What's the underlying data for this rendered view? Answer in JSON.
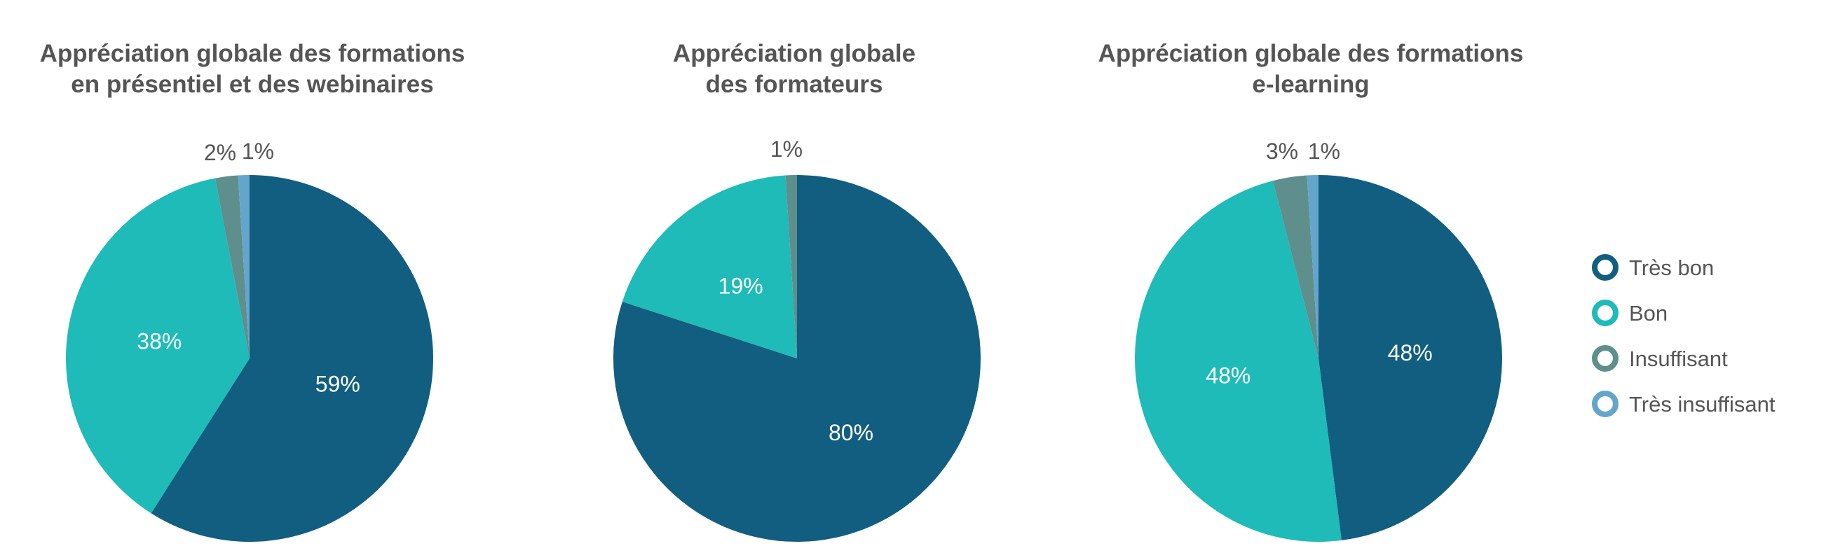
{
  "chart_data": [
    {
      "type": "pie",
      "title": [
        "Appréciation globale des formations",
        "en présentiel et des webinaires"
      ],
      "categories": [
        "Très bon",
        "Bon",
        "Insuffisant",
        "Très insuffisant"
      ],
      "values": [
        59,
        38,
        2,
        1
      ],
      "labels": [
        "59%",
        "38%",
        "2%",
        "1%"
      ]
    },
    {
      "type": "pie",
      "title": [
        "Appréciation globale",
        "des formateurs"
      ],
      "categories": [
        "Très bon",
        "Bon",
        "Insuffisant",
        "Très insuffisant"
      ],
      "values": [
        80,
        19,
        1,
        0
      ],
      "labels": [
        "80%",
        "19%",
        "1%",
        ""
      ]
    },
    {
      "type": "pie",
      "title": [
        "Appréciation globale des formations",
        "e-learning"
      ],
      "categories": [
        "Très bon",
        "Bon",
        "Insuffisant",
        "Très insuffisant"
      ],
      "values": [
        48,
        48,
        3,
        1
      ],
      "labels": [
        "48%",
        "48%",
        "3%",
        "1%"
      ]
    }
  ],
  "legend": {
    "placement": "right",
    "items": [
      {
        "label": "Très bon",
        "color": "#125E80"
      },
      {
        "label": "Bon",
        "color": "#1EBBB8"
      },
      {
        "label": "Insuffisant",
        "color": "#5E8F8D"
      },
      {
        "label": "Très insuffisant",
        "color": "#64A6CB"
      }
    ]
  },
  "colors": {
    "slices": [
      "#125E80",
      "#1EBBB8",
      "#5E8F8D",
      "#64A6CB"
    ],
    "inside_label": "#ffffff",
    "outside_label": "#555555",
    "title": "#555555"
  }
}
